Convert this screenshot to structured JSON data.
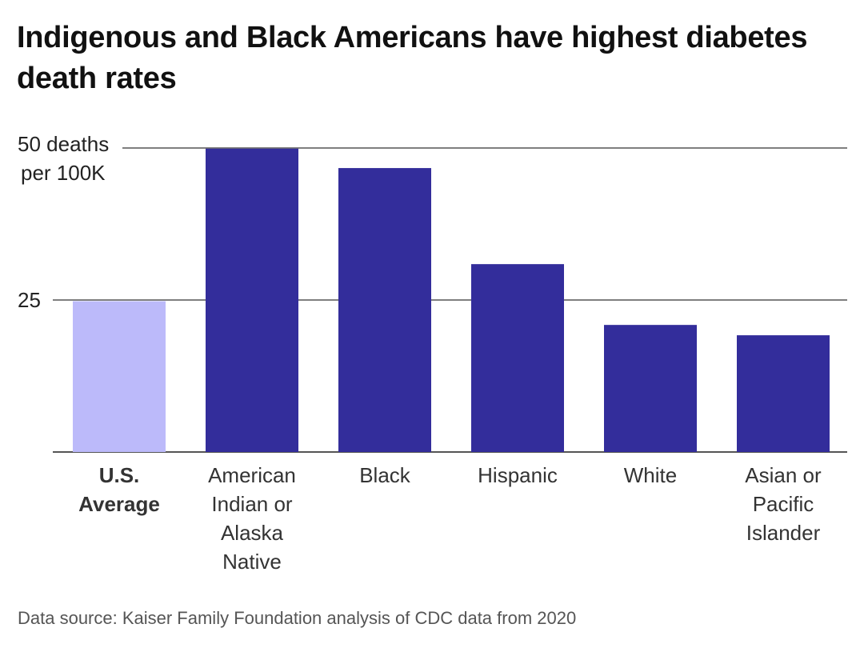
{
  "chart_data": {
    "type": "bar",
    "title": "Indigenous and Black Americans have highest diabetes death rates",
    "categories": [
      "U.S. Average",
      "American Indian or Alaska Native",
      "Black",
      "Hispanic",
      "White",
      "Asian or Pacific Islander"
    ],
    "category_lines": [
      [
        "U.S.",
        "Average"
      ],
      [
        "American",
        "Indian or",
        "Alaska",
        "Native"
      ],
      [
        "Black"
      ],
      [
        "Hispanic"
      ],
      [
        "White"
      ],
      [
        "Asian or",
        "Pacific",
        "Islander"
      ]
    ],
    "values": [
      24.8,
      49.9,
      46.7,
      30.9,
      20.9,
      19.2
    ],
    "highlight_index": 0,
    "ylim": [
      0,
      50
    ],
    "yticks": [
      {
        "value": 25,
        "lines": [
          "25"
        ]
      },
      {
        "value": 50,
        "lines": [
          "50 deaths",
          "per 100K"
        ]
      }
    ],
    "grid": true,
    "legend": "none",
    "colors": {
      "bar": "#332d9b",
      "highlight": "#bcbafa",
      "grid": "#555555",
      "baseline": "#555555"
    },
    "source": "Data source: Kaiser Family Foundation analysis of CDC data from 2020"
  }
}
